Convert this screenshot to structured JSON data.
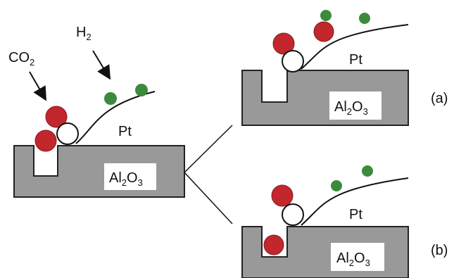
{
  "reactants": {
    "co2": {
      "text": "CO",
      "sub": "2"
    },
    "h2": {
      "text": "H",
      "sub": "2"
    }
  },
  "panels": [
    {
      "metal": "Pt",
      "support": {
        "a": "Al",
        "s1": "2",
        "b": "O",
        "s2": "3"
      }
    },
    {
      "metal": "Pt",
      "support": {
        "a": "Al",
        "s1": "2",
        "b": "O",
        "s2": "3"
      },
      "tag": "(a)"
    },
    {
      "metal": "Pt",
      "support": {
        "a": "Al",
        "s1": "2",
        "b": "O",
        "s2": "3"
      },
      "tag": "(b)"
    }
  ]
}
